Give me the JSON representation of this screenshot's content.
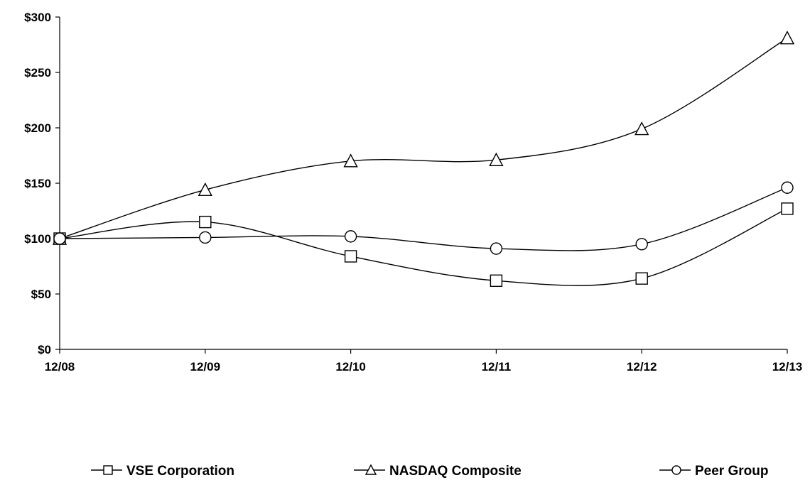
{
  "chart_data": {
    "type": "line",
    "title": "",
    "xlabel": "",
    "ylabel": "",
    "categories": [
      "12/08",
      "12/09",
      "12/10",
      "12/11",
      "12/12",
      "12/13"
    ],
    "ylim": [
      0,
      300
    ],
    "y_ticks": [
      0,
      50,
      100,
      150,
      200,
      250,
      300
    ],
    "y_tick_labels": [
      "$0",
      "$50",
      "$100",
      "$150",
      "$200",
      "$250",
      "$300"
    ],
    "grid": false,
    "legend_position": "bottom",
    "series": [
      {
        "name": "VSE Corporation",
        "marker": "square",
        "color": "#000000",
        "values": [
          100,
          115,
          84,
          62,
          64,
          127
        ]
      },
      {
        "name": "NASDAQ Composite",
        "marker": "triangle",
        "color": "#000000",
        "values": [
          100,
          144,
          170,
          171,
          199,
          281
        ]
      },
      {
        "name": "Peer Group",
        "marker": "circle",
        "color": "#000000",
        "values": [
          100,
          101,
          102,
          91,
          95,
          146
        ]
      }
    ]
  }
}
